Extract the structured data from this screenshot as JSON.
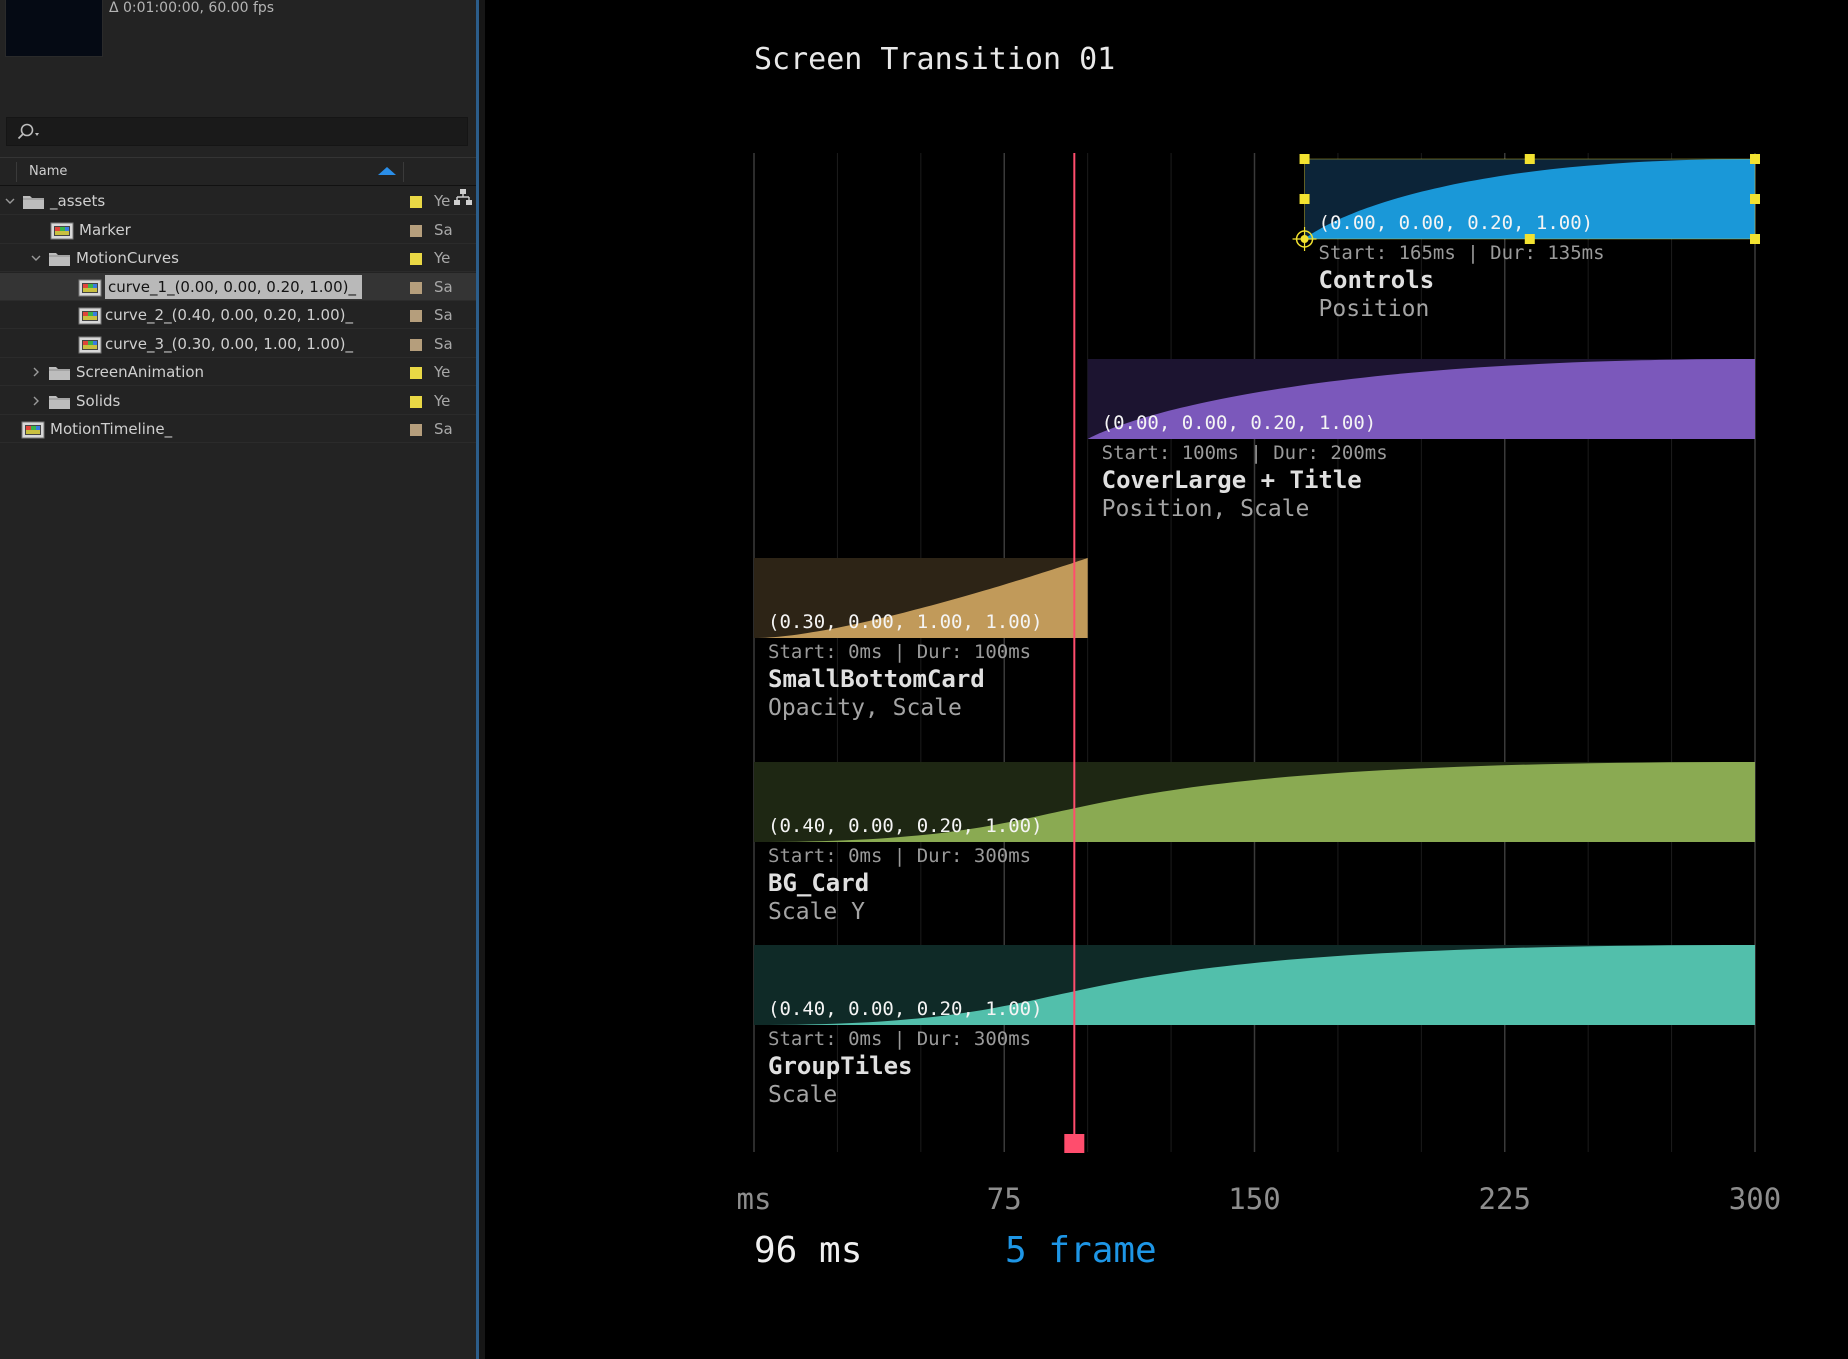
{
  "project": {
    "meta": "Δ 0:01:00:00, 60.00 fps",
    "search": {
      "placeholder": "",
      "icon": "search-icon"
    },
    "columns": {
      "name": "Name",
      "second": ""
    },
    "rows": [
      {
        "label": "_assets",
        "type": "folder",
        "expanded": true,
        "depth": 0,
        "swatch": "#e9d845",
        "col": "Ye"
      },
      {
        "label": "Marker",
        "type": "comp",
        "depth": 1,
        "swatch": "#b59e7c",
        "col": "Sa"
      },
      {
        "label": "MotionCurves",
        "type": "folder",
        "expanded": true,
        "depth": 1,
        "swatch": "#e9d845",
        "col": "Ye"
      },
      {
        "label": "curve_1_(0.00, 0.00, 0.20, 1.00)_",
        "type": "comp",
        "depth": 2,
        "swatch": "#b59e7c",
        "col": "Sa",
        "selected": true
      },
      {
        "label": "curve_2_(0.40, 0.00, 0.20, 1.00)_",
        "type": "comp",
        "depth": 2,
        "swatch": "#b59e7c",
        "col": "Sa"
      },
      {
        "label": "curve_3_(0.30, 0.00, 1.00, 1.00)_",
        "type": "comp",
        "depth": 2,
        "swatch": "#b59e7c",
        "col": "Sa"
      },
      {
        "label": "ScreenAnimation",
        "type": "folder",
        "expanded": false,
        "depth": 1,
        "swatch": "#e9d845",
        "col": "Ye"
      },
      {
        "label": "Solids",
        "type": "folder",
        "expanded": false,
        "depth": 1,
        "swatch": "#e9d845",
        "col": "Ye"
      },
      {
        "label": "MotionTimeline_",
        "type": "comp",
        "depth": 0,
        "swatch": "#b59e7c",
        "col": "Sa"
      }
    ]
  },
  "comp": {
    "title": "Screen Transition 01",
    "axis_ticks": [
      "ms",
      "75",
      "150",
      "225",
      "300"
    ],
    "readout": {
      "ms": "96 ms",
      "frame": "5 frame"
    },
    "playhead_ms": 96,
    "playhead_color": "#ff4d6d"
  },
  "chart_data": {
    "type": "area",
    "x_unit": "ms",
    "xlim": [
      0,
      300
    ],
    "tracks": [
      {
        "name": "Controls",
        "properties": "Position",
        "curve": "(0.00, 0.00, 0.20, 1.00)",
        "timing": "Start: 165ms | Dur: 135ms",
        "start": 165,
        "dur": 135,
        "color": "#1a98d8",
        "dark": "#0c2438",
        "selected": true
      },
      {
        "name": "CoverLarge + Title",
        "properties": "Position, Scale",
        "curve": "(0.00, 0.00, 0.20, 1.00)",
        "timing": "Start: 100ms | Dur: 200ms",
        "start": 100,
        "dur": 200,
        "color": "#7b58bb",
        "dark": "#1c1430"
      },
      {
        "name": "SmallBottomCard",
        "properties": "Opacity, Scale",
        "curve": "(0.30, 0.00, 1.00, 1.00)",
        "timing": "Start: 0ms | Dur: 100ms",
        "start": 0,
        "dur": 100,
        "color": "#c19a5a",
        "dark": "#2d2416"
      },
      {
        "name": "BG_Card",
        "properties": "Scale Y",
        "curve": "(0.40, 0.00, 0.20, 1.00)",
        "timing": "Start: 0ms | Dur: 300ms",
        "start": 0,
        "dur": 300,
        "color": "#8aaa52",
        "dark": "#1e2713"
      },
      {
        "name": "GroupTiles",
        "properties": "Scale",
        "curve": "(0.40, 0.00, 0.20, 1.00)",
        "timing": "Start: 0ms | Dur: 300ms",
        "start": 0,
        "dur": 300,
        "color": "#52bfab",
        "dark": "#0f2a27"
      }
    ]
  }
}
